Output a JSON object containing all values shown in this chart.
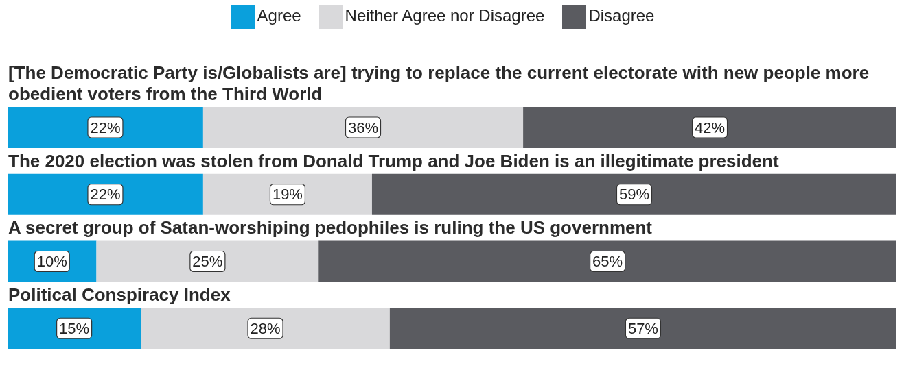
{
  "chart_data": {
    "type": "bar",
    "orientation": "horizontal",
    "stacked": true,
    "legend": "top",
    "categories": [
      "[The Democratic Party is/Globalists are] trying to replace the current electorate with new people more obedient voters from the Third World",
      "The 2020 election was stolen from Donald Trump and Joe Biden is an illegitimate president",
      "A secret group of Satan-worshiping pedophiles is ruling the US government",
      "Political Conspiracy Index"
    ],
    "series": [
      {
        "name": "Agree",
        "color": "#0aa0dc",
        "values": [
          22,
          22,
          10,
          15
        ],
        "value_labels": [
          "22%",
          "22%",
          "10%",
          "15%"
        ]
      },
      {
        "name": "Neither Agree nor Disagree",
        "color": "#d9d9db",
        "values": [
          36,
          19,
          25,
          28
        ],
        "value_labels": [
          "36%",
          "19%",
          "25%",
          "28%"
        ]
      },
      {
        "name": "Disagree",
        "color": "#5a5b60",
        "values": [
          42,
          59,
          65,
          57
        ],
        "value_labels": [
          "42%",
          "59%",
          "65%",
          "57%"
        ]
      }
    ]
  }
}
